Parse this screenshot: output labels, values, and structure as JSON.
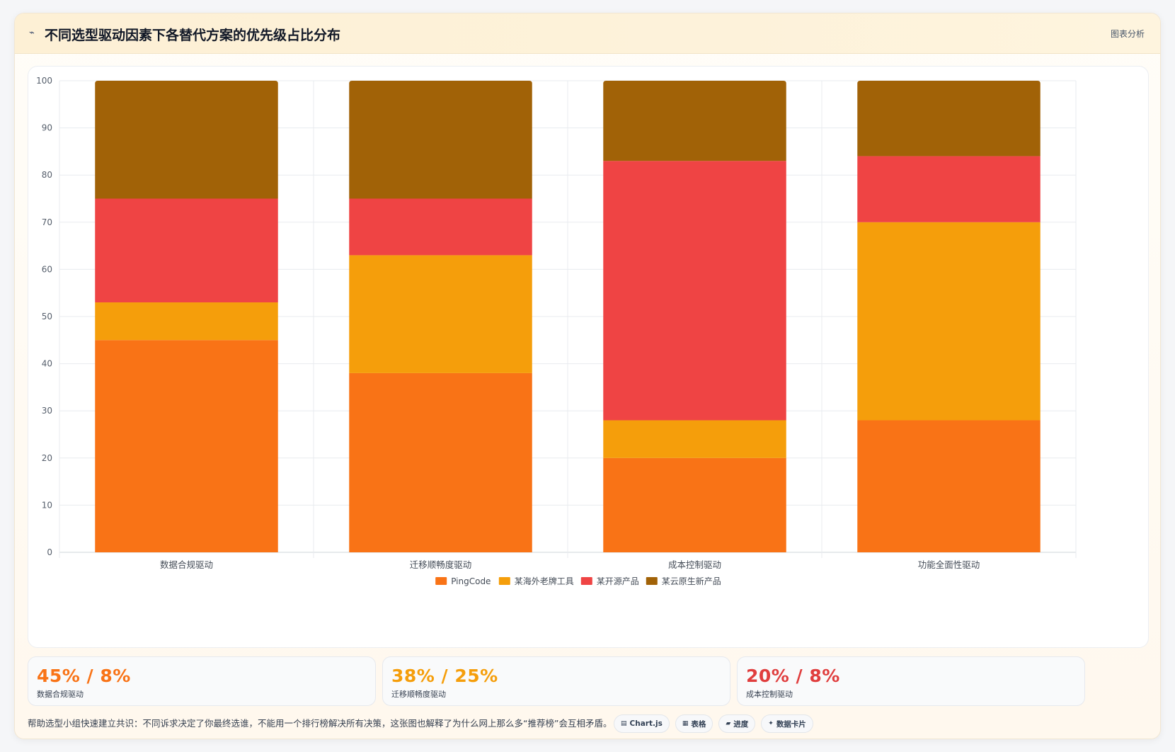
{
  "header": {
    "icon": "chart-line-icon",
    "title": "不同选型驱动因素下各替代方案的优先级占比分布",
    "action_label": "图表分析"
  },
  "chart_data": {
    "type": "bar",
    "stacked": true,
    "categories": [
      "数据合规驱动",
      "迁移顺畅度驱动",
      "成本控制驱动",
      "功能全面性驱动"
    ],
    "series": [
      {
        "name": "PingCode",
        "color": "#f97316",
        "values": [
          45,
          38,
          20,
          28
        ]
      },
      {
        "name": "某海外老牌工具",
        "color": "#f59e0b",
        "values": [
          8,
          25,
          8,
          42
        ]
      },
      {
        "name": "某开源产品",
        "color": "#ef4444",
        "values": [
          22,
          12,
          55,
          14
        ]
      },
      {
        "name": "某云原生新产品",
        "color": "#a16207",
        "values": [
          25,
          25,
          17,
          16
        ]
      }
    ],
    "ylim": [
      0,
      100
    ],
    "yticks": [
      0,
      10,
      20,
      30,
      40,
      50,
      60,
      70,
      80,
      90,
      100
    ],
    "grid": true,
    "legend_position": "bottom"
  },
  "stats": [
    {
      "value": "45% / 8%",
      "label": "数据合规驱动",
      "color": "#f97316"
    },
    {
      "value": "38% / 25%",
      "label": "迁移顺畅度驱动",
      "color": "#f59e0b"
    },
    {
      "value": "20% / 8%",
      "label": "成本控制驱动",
      "color": "#e03e3e"
    }
  ],
  "footer": {
    "note": "帮助选型小组快速建立共识：不同诉求决定了你最终选谁，不能用一个排行榜解决所有决策，这张图也解释了为什么网上那么多“推荐榜”会互相矛盾。",
    "tags": [
      {
        "icon": "chart-icon",
        "glyph": "▤",
        "label": "Chart.js"
      },
      {
        "icon": "table-icon",
        "glyph": "▦",
        "label": "表格"
      },
      {
        "icon": "progress-icon",
        "glyph": "▰",
        "label": "进度"
      },
      {
        "icon": "card-icon",
        "glyph": "✦",
        "label": "数据卡片"
      }
    ]
  }
}
